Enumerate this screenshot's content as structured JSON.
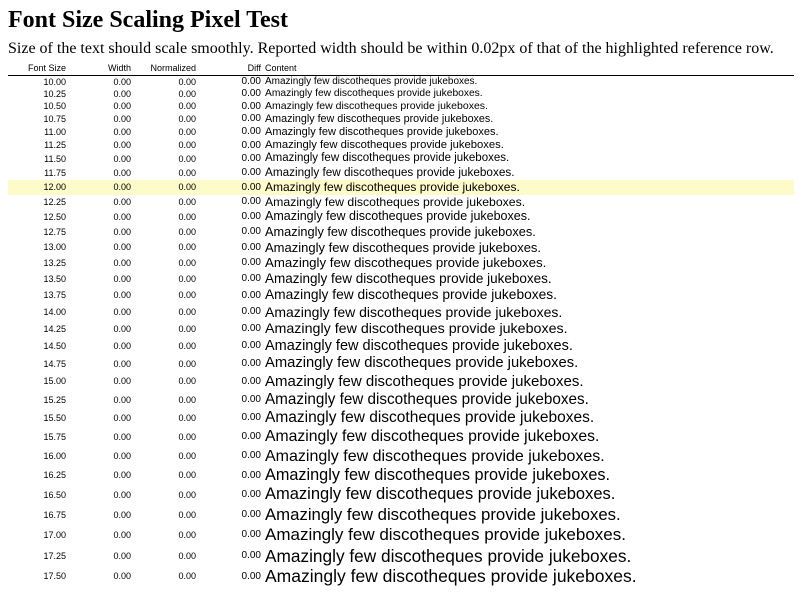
{
  "header": {
    "title": "Font Size Scaling Pixel Test",
    "subtitle": "Size of the text should scale smoothly. Reported width should be within 0.02px of that of the highlighted reference row."
  },
  "table": {
    "columns": [
      "Font Size",
      "Width",
      "Normalized",
      "Diff",
      "Content"
    ],
    "highlight_row": 8,
    "rows": [
      {
        "font_size": "10.00",
        "width": "0.00",
        "normalized": "0.00",
        "diff": "0.00",
        "content": "Amazingly few discotheques provide jukeboxes."
      },
      {
        "font_size": "10.25",
        "width": "0.00",
        "normalized": "0.00",
        "diff": "0.00",
        "content": "Amazingly few discotheques provide jukeboxes."
      },
      {
        "font_size": "10.50",
        "width": "0.00",
        "normalized": "0.00",
        "diff": "0.00",
        "content": "Amazingly few discotheques provide jukeboxes."
      },
      {
        "font_size": "10.75",
        "width": "0.00",
        "normalized": "0.00",
        "diff": "0.00",
        "content": "Amazingly few discotheques provide jukeboxes."
      },
      {
        "font_size": "11.00",
        "width": "0.00",
        "normalized": "0.00",
        "diff": "0.00",
        "content": "Amazingly few discotheques provide jukeboxes."
      },
      {
        "font_size": "11.25",
        "width": "0.00",
        "normalized": "0.00",
        "diff": "0.00",
        "content": "Amazingly few discotheques provide jukeboxes."
      },
      {
        "font_size": "11.50",
        "width": "0.00",
        "normalized": "0.00",
        "diff": "0.00",
        "content": "Amazingly few discotheques provide jukeboxes."
      },
      {
        "font_size": "11.75",
        "width": "0.00",
        "normalized": "0.00",
        "diff": "0.00",
        "content": "Amazingly few discotheques provide jukeboxes."
      },
      {
        "font_size": "12.00",
        "width": "0.00",
        "normalized": "0.00",
        "diff": "0.00",
        "content": "Amazingly few discotheques provide jukeboxes."
      },
      {
        "font_size": "12.25",
        "width": "0.00",
        "normalized": "0.00",
        "diff": "0.00",
        "content": "Amazingly few discotheques provide jukeboxes."
      },
      {
        "font_size": "12.50",
        "width": "0.00",
        "normalized": "0.00",
        "diff": "0.00",
        "content": "Amazingly few discotheques provide jukeboxes."
      },
      {
        "font_size": "12.75",
        "width": "0.00",
        "normalized": "0.00",
        "diff": "0.00",
        "content": "Amazingly few discotheques provide jukeboxes."
      },
      {
        "font_size": "13.00",
        "width": "0.00",
        "normalized": "0.00",
        "diff": "0.00",
        "content": "Amazingly few discotheques provide jukeboxes."
      },
      {
        "font_size": "13.25",
        "width": "0.00",
        "normalized": "0.00",
        "diff": "0.00",
        "content": "Amazingly few discotheques provide jukeboxes."
      },
      {
        "font_size": "13.50",
        "width": "0.00",
        "normalized": "0.00",
        "diff": "0.00",
        "content": "Amazingly few discotheques provide jukeboxes."
      },
      {
        "font_size": "13.75",
        "width": "0.00",
        "normalized": "0.00",
        "diff": "0.00",
        "content": "Amazingly few discotheques provide jukeboxes."
      },
      {
        "font_size": "14.00",
        "width": "0.00",
        "normalized": "0.00",
        "diff": "0.00",
        "content": "Amazingly few discotheques provide jukeboxes."
      },
      {
        "font_size": "14.25",
        "width": "0.00",
        "normalized": "0.00",
        "diff": "0.00",
        "content": "Amazingly few discotheques provide jukeboxes."
      },
      {
        "font_size": "14.50",
        "width": "0.00",
        "normalized": "0.00",
        "diff": "0.00",
        "content": "Amazingly few discotheques provide jukeboxes."
      },
      {
        "font_size": "14.75",
        "width": "0.00",
        "normalized": "0.00",
        "diff": "0.00",
        "content": "Amazingly few discotheques provide jukeboxes."
      },
      {
        "font_size": "15.00",
        "width": "0.00",
        "normalized": "0.00",
        "diff": "0.00",
        "content": "Amazingly few discotheques provide jukeboxes."
      },
      {
        "font_size": "15.25",
        "width": "0.00",
        "normalized": "0.00",
        "diff": "0.00",
        "content": "Amazingly few discotheques provide jukeboxes."
      },
      {
        "font_size": "15.50",
        "width": "0.00",
        "normalized": "0.00",
        "diff": "0.00",
        "content": "Amazingly few discotheques provide jukeboxes."
      },
      {
        "font_size": "15.75",
        "width": "0.00",
        "normalized": "0.00",
        "diff": "0.00",
        "content": "Amazingly few discotheques provide jukeboxes."
      },
      {
        "font_size": "16.00",
        "width": "0.00",
        "normalized": "0.00",
        "diff": "0.00",
        "content": "Amazingly few discotheques provide jukeboxes."
      },
      {
        "font_size": "16.25",
        "width": "0.00",
        "normalized": "0.00",
        "diff": "0.00",
        "content": "Amazingly few discotheques provide jukeboxes."
      },
      {
        "font_size": "16.50",
        "width": "0.00",
        "normalized": "0.00",
        "diff": "0.00",
        "content": "Amazingly few discotheques provide jukeboxes."
      },
      {
        "font_size": "16.75",
        "width": "0.00",
        "normalized": "0.00",
        "diff": "0.00",
        "content": "Amazingly few discotheques provide jukeboxes."
      },
      {
        "font_size": "17.00",
        "width": "0.00",
        "normalized": "0.00",
        "diff": "0.00",
        "content": "Amazingly few discotheques provide jukeboxes."
      },
      {
        "font_size": "17.25",
        "width": "0.00",
        "normalized": "0.00",
        "diff": "0.00",
        "content": "Amazingly few discotheques provide jukeboxes."
      },
      {
        "font_size": "17.50",
        "width": "0.00",
        "normalized": "0.00",
        "diff": "0.00",
        "content": "Amazingly few discotheques provide jukeboxes."
      }
    ]
  }
}
